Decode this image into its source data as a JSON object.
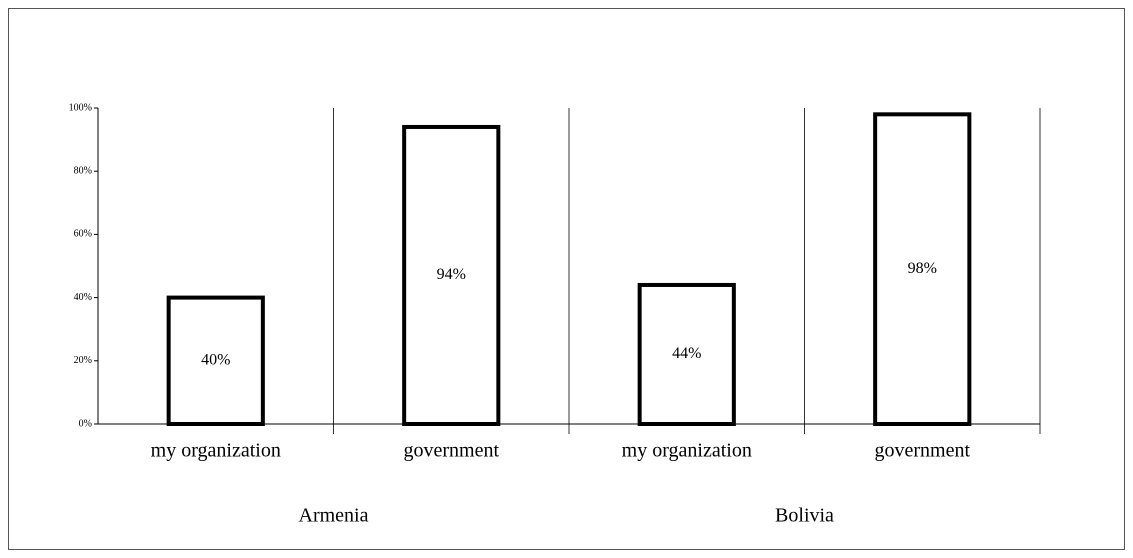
{
  "chart_data": {
    "type": "bar",
    "groups": [
      {
        "name": "Armenia",
        "categories": [
          "my organization",
          "government"
        ],
        "values": [
          40,
          94
        ],
        "value_labels": [
          "40%",
          "94%"
        ]
      },
      {
        "name": "Bolivia",
        "categories": [
          "my organization",
          "government"
        ],
        "values": [
          44,
          98
        ],
        "value_labels": [
          "44%",
          "98%"
        ]
      }
    ],
    "color": "#ffffff",
    "edgecolor": "#000000",
    "ylim": [
      0,
      100
    ],
    "yticks": [
      {
        "value": 0,
        "label": "0%"
      },
      {
        "value": 20,
        "label": "20%"
      },
      {
        "value": 40,
        "label": "40%"
      },
      {
        "value": 60,
        "label": "60%"
      },
      {
        "value": 80,
        "label": "80%"
      },
      {
        "value": 100,
        "label": "100%"
      }
    ]
  }
}
